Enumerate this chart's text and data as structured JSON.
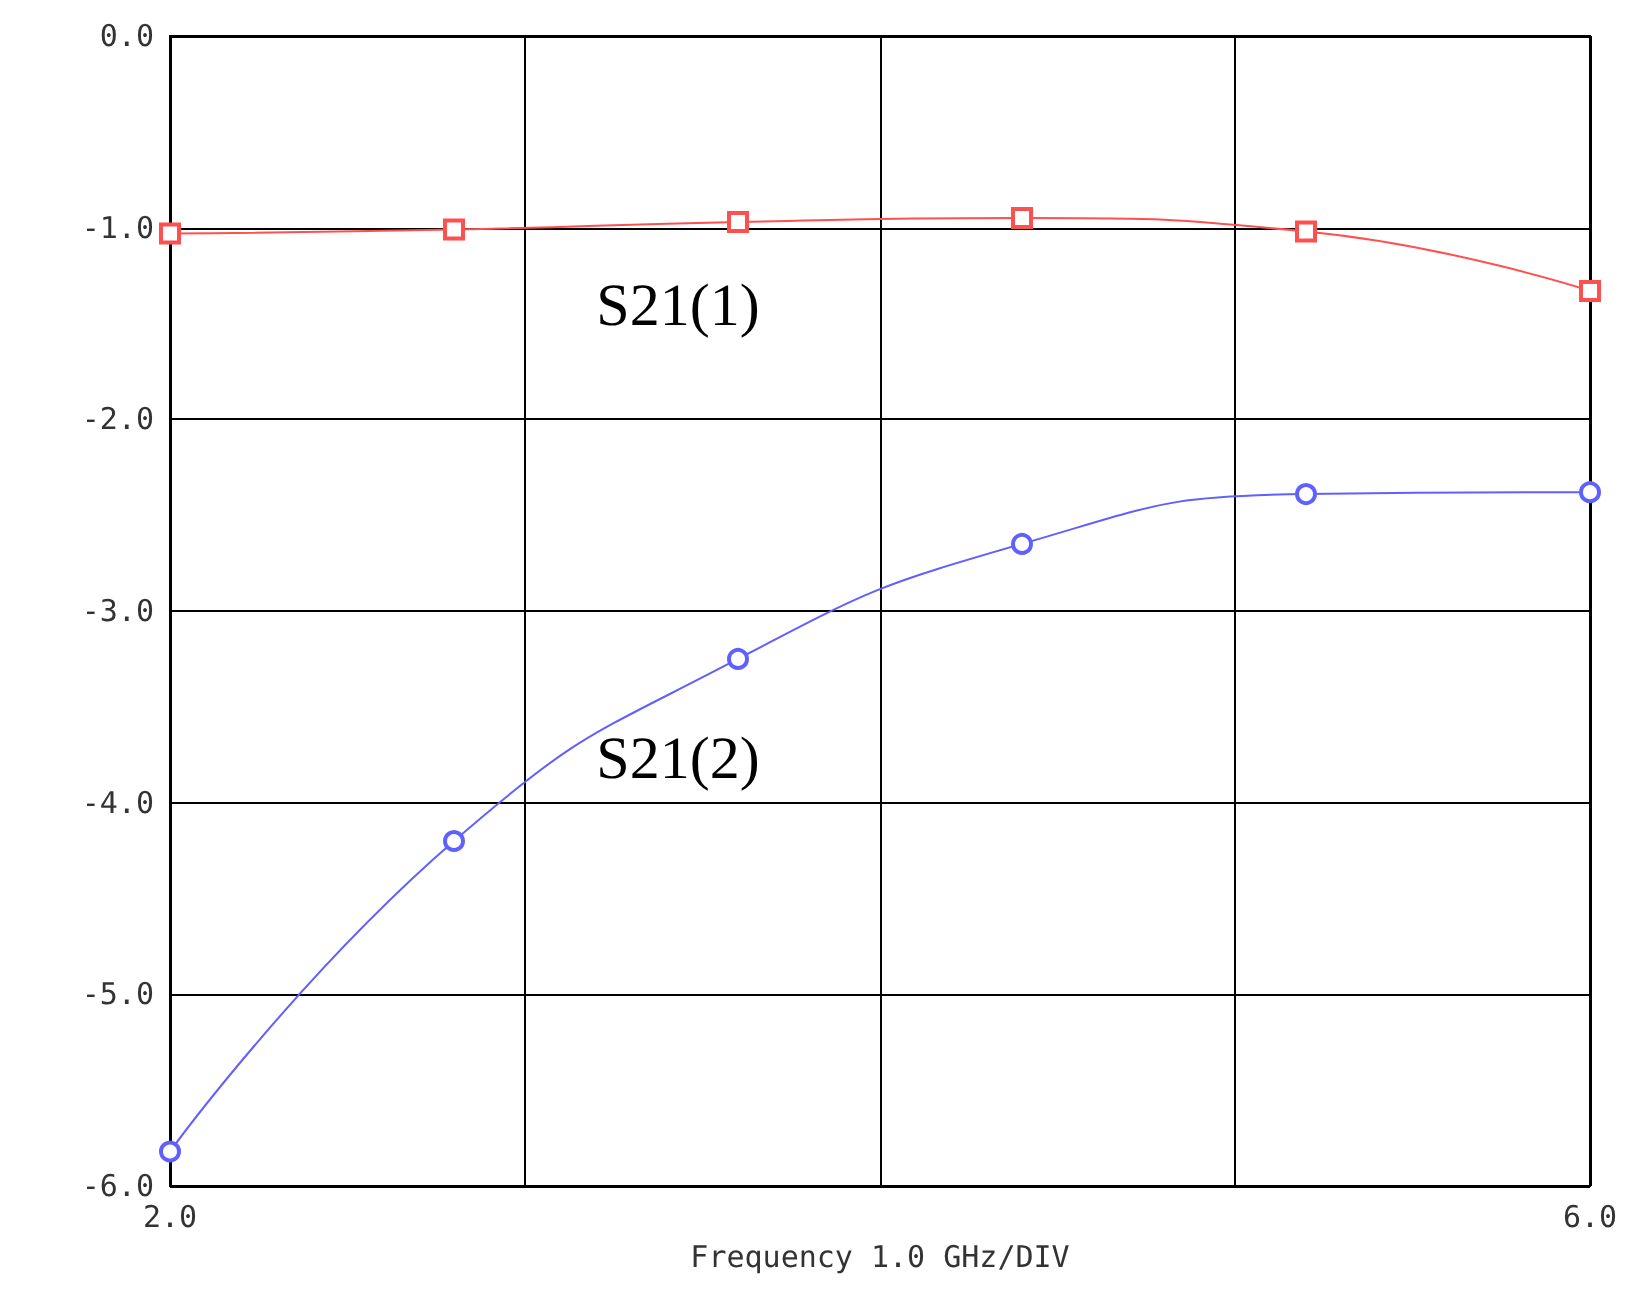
{
  "chart_data": {
    "type": "line",
    "xlabel": "Frequency 1.0 GHz/DIV",
    "x": [
      2.0,
      2.8,
      3.6,
      4.4,
      5.2,
      6.0
    ],
    "series": [
      {
        "name": "S21(1)",
        "color": "#ff5050",
        "marker": "square",
        "values": [
          -1.03,
          -1.01,
          -0.97,
          -0.95,
          -1.02,
          -1.33
        ]
      },
      {
        "name": "S21(2)",
        "color": "#6060ff",
        "marker": "circle",
        "values": [
          -5.82,
          -4.2,
          -3.25,
          -2.65,
          -2.39,
          -2.38
        ]
      }
    ],
    "xlim": [
      2,
      6
    ],
    "xticks": [
      {
        "value": 2,
        "label": "2.0"
      },
      {
        "value": 3,
        "label": null
      },
      {
        "value": 4,
        "label": null
      },
      {
        "value": 5,
        "label": null
      },
      {
        "value": 6,
        "label": "6.0"
      }
    ],
    "ylim": [
      -6,
      0
    ],
    "yticks": [
      {
        "value": -6,
        "label": "-6.0"
      },
      {
        "value": -5,
        "label": "-5.0"
      },
      {
        "value": -4,
        "label": "-4.0"
      },
      {
        "value": -3,
        "label": "-3.0"
      },
      {
        "value": -2,
        "label": "-2.0"
      },
      {
        "value": -1,
        "label": "-1.0"
      },
      {
        "value": 0,
        "label": "0.0"
      }
    ],
    "grid": true,
    "legend": false,
    "line_style": "solid"
  }
}
